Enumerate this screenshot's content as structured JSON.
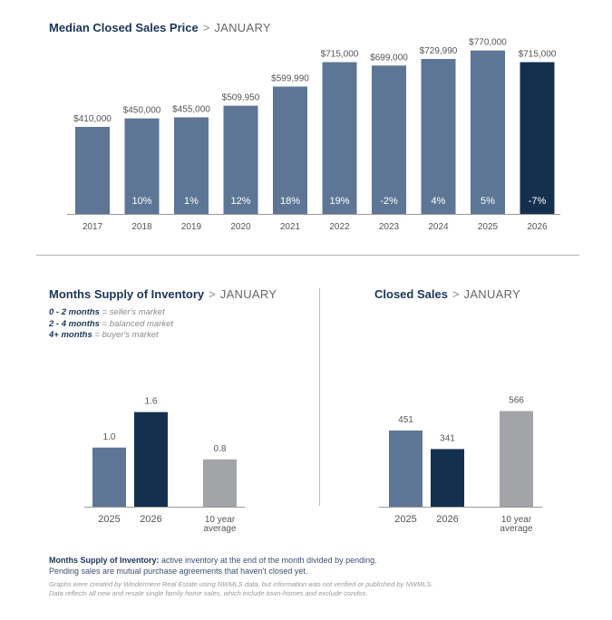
{
  "colors": {
    "bar_prior": "#5e7695",
    "bar_current": "#15304f",
    "bar_average": "#a2a4a8",
    "title": "#1b3558",
    "axis": "#9a9a9a"
  },
  "separator": ">",
  "chart_data": [
    {
      "id": "median-price",
      "type": "bar",
      "title": "Median Closed Sales Price",
      "subtitle": "JANUARY",
      "categories": [
        "2017",
        "2018",
        "2019",
        "2020",
        "2021",
        "2022",
        "2023",
        "2024",
        "2025",
        "2026"
      ],
      "values": [
        410000,
        450000,
        455000,
        509950,
        599990,
        715000,
        699000,
        729990,
        770000,
        715000
      ],
      "value_labels": [
        "$410,000",
        "$450,000",
        "$455,000",
        "$509,950",
        "$599,990",
        "$715,000",
        "$699,000",
        "$729,990",
        "$770,000",
        "$715,000"
      ],
      "pct_change_labels": [
        "",
        "10%",
        "1%",
        "12%",
        "18%",
        "19%",
        "-2%",
        "4%",
        "5%",
        "-7%"
      ],
      "highlight_index": 9,
      "ylim": [
        0,
        790000
      ],
      "xlabel": "",
      "ylabel": "",
      "grid": false
    },
    {
      "id": "months-supply",
      "type": "bar",
      "title": "Months Supply of Inventory",
      "subtitle": "JANUARY",
      "categories": [
        "2025",
        "2026",
        "10 year average"
      ],
      "category_lines": [
        [
          "2025"
        ],
        [
          "2026"
        ],
        [
          "10 year",
          "average"
        ]
      ],
      "values": [
        1.0,
        1.6,
        0.8
      ],
      "value_labels": [
        "1.0",
        "1.6",
        "0.8"
      ],
      "ylim": [
        0,
        2.1
      ],
      "legend": [
        {
          "range": "0 - 2 months",
          "eq": "=",
          "desc": "seller's market"
        },
        {
          "range": "2 - 4 months",
          "eq": "=",
          "desc": "balanced market"
        },
        {
          "range": "4+ months",
          "eq": "=",
          "desc": "buyer's market"
        }
      ]
    },
    {
      "id": "closed-sales",
      "type": "bar",
      "title": "Closed Sales",
      "subtitle": "JANUARY",
      "categories": [
        "2025",
        "2026",
        "10 year average"
      ],
      "category_lines": [
        [
          "2025"
        ],
        [
          "2026"
        ],
        [
          "10 year",
          "average"
        ]
      ],
      "values": [
        451,
        341,
        566
      ],
      "value_labels": [
        "451",
        "341",
        "566"
      ],
      "ylim": [
        0,
        735
      ]
    }
  ],
  "footnote": {
    "term": "Months Supply of Inventory:",
    "definition": " active inventory at the end of the month divided by pending.",
    "line2": "Pending sales are mutual purchase agreements that haven't closed yet."
  },
  "credits": {
    "line1": "Graphs were created by Windermere Real Estate using NWMLS data, but information was not verified or published by NWMLS.",
    "line2": "Data reflects all new and resale single family home sales, which include town-homes and exclude condos."
  }
}
